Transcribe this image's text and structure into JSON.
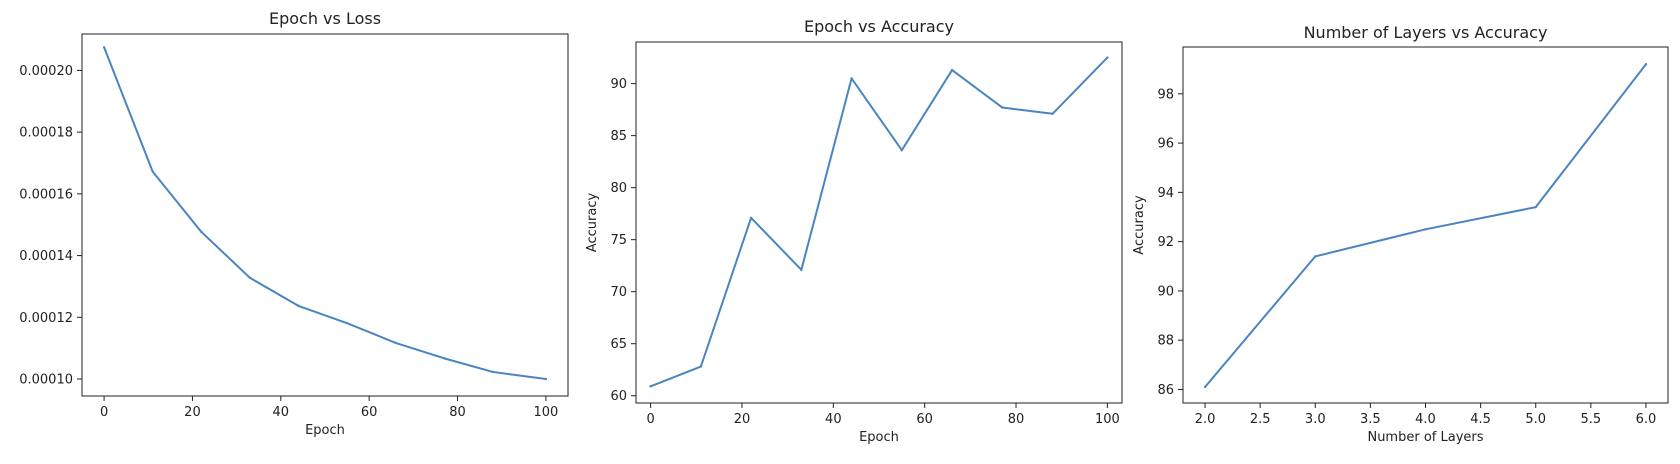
{
  "chart_data": [
    {
      "type": "line",
      "title": "Epoch vs Loss",
      "xlabel": "Epoch",
      "ylabel": "",
      "x": [
        0,
        11,
        22,
        33,
        44,
        55,
        66,
        77,
        88,
        100
      ],
      "y": [
        0.0002075,
        0.0001672,
        0.0001477,
        0.0001328,
        0.0001237,
        0.0001181,
        0.0001117,
        0.0001067,
        0.0001023,
        0.0001
      ],
      "xlim": [
        -5,
        105
      ],
      "ylim": [
        9.45e-05,
        0.0002118
      ],
      "xticks": [
        0,
        20,
        40,
        60,
        80,
        100
      ],
      "xtick_labels": [
        "0",
        "20",
        "40",
        "60",
        "80",
        "100"
      ],
      "yticks": [
        0.0001,
        0.00012,
        0.00014,
        0.00016,
        0.00018,
        0.0002
      ],
      "ytick_labels": [
        "0.00010",
        "0.00012",
        "0.00014",
        "0.00016",
        "0.00018",
        "0.00020"
      ],
      "color": "#4a85c1"
    },
    {
      "type": "line",
      "title": "Epoch vs Accuracy",
      "xlabel": "Epoch",
      "ylabel": "Accuracy",
      "x": [
        0,
        11,
        22,
        33,
        44,
        55,
        66,
        77,
        88,
        100
      ],
      "y": [
        60.9,
        62.8,
        77.1,
        72.1,
        90.5,
        83.6,
        91.3,
        87.7,
        87.1,
        92.5
      ],
      "xlim": [
        -3.2,
        103.2
      ],
      "ylim": [
        59.3,
        94.0
      ],
      "xticks": [
        0,
        20,
        40,
        60,
        80,
        100
      ],
      "xtick_labels": [
        "0",
        "20",
        "40",
        "60",
        "80",
        "100"
      ],
      "yticks": [
        60,
        65,
        70,
        75,
        80,
        85,
        90
      ],
      "ytick_labels": [
        "60",
        "65",
        "70",
        "75",
        "80",
        "85",
        "90"
      ],
      "color": "#4a85c1"
    },
    {
      "type": "line",
      "title": "Number of Layers vs Accuracy",
      "xlabel": "Number of Layers",
      "ylabel": "Accuracy",
      "x": [
        2.0,
        3.0,
        4.0,
        5.0,
        6.0
      ],
      "y": [
        86.1,
        91.4,
        92.5,
        93.4,
        99.2
      ],
      "xlim": [
        1.8,
        6.2
      ],
      "ylim": [
        85.45,
        99.9
      ],
      "xticks": [
        2.0,
        2.5,
        3.0,
        3.5,
        4.0,
        4.5,
        5.0,
        5.5,
        6.0
      ],
      "xtick_labels": [
        "2.0",
        "2.5",
        "3.0",
        "3.5",
        "4.0",
        "4.5",
        "5.0",
        "5.5",
        "6.0"
      ],
      "yticks": [
        86,
        88,
        90,
        92,
        94,
        96,
        98
      ],
      "ytick_labels": [
        "86",
        "88",
        "90",
        "92",
        "94",
        "96",
        "98"
      ],
      "color": "#4a85c1"
    }
  ]
}
